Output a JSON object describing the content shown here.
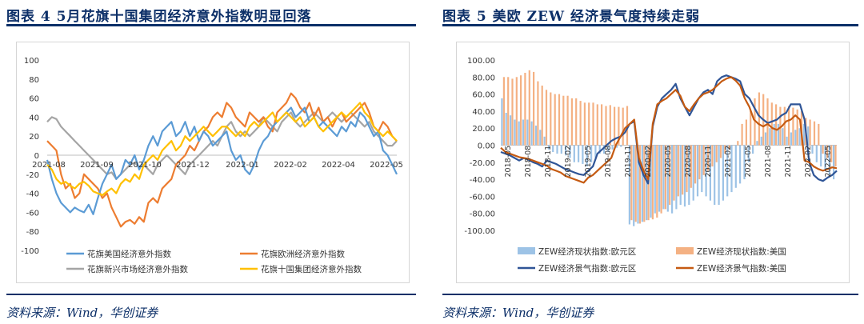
{
  "left": {
    "title": "图表 4   5月花旗十国集团经济意外指数明显回落",
    "source": "资料来源：Wind，华创证券"
  },
  "right": {
    "title": "图表 5   美欧 ZEW 经济景气度持续走弱",
    "source": "资料来源：Wind，华创证券"
  },
  "colors": {
    "title_blue": "#0c2f68",
    "us_blue": "#5b9bd5",
    "eu_orange": "#ed7d31",
    "em_gray": "#a5a5a5",
    "g10_yellow": "#ffc000",
    "zew_eu_bar": "#9dc3e6",
    "zew_us_bar": "#f4b183",
    "zew_eu_line": "#2f5597",
    "zew_us_line": "#c55a11"
  },
  "chart_data": [
    {
      "type": "line",
      "title": "",
      "x_tick_labels": [
        "2021-08",
        "2021-09",
        "2021-10",
        "2021-12",
        "2022-01",
        "2022-02",
        "2022-04",
        "2022-05"
      ],
      "ylim": [
        -100,
        100
      ],
      "y_ticks": [
        100,
        80,
        60,
        40,
        20,
        0,
        -20,
        -40,
        -60,
        -80,
        -100
      ],
      "legend_position": "bottom",
      "series": [
        {
          "name": "花旗美国经济意外指数",
          "color_key": "us_blue",
          "values": [
            -5,
            -25,
            -40,
            -50,
            -55,
            -60,
            -55,
            -58,
            -60,
            -52,
            -62,
            -45,
            -30,
            -20,
            -10,
            -25,
            -20,
            -5,
            -10,
            0,
            -15,
            -5,
            10,
            20,
            10,
            25,
            30,
            35,
            20,
            25,
            35,
            20,
            30,
            15,
            25,
            20,
            10,
            15,
            20,
            25,
            5,
            -5,
            0,
            -15,
            -20,
            -10,
            5,
            15,
            20,
            30,
            35,
            40,
            45,
            50,
            40,
            45,
            50,
            35,
            40,
            30,
            35,
            30,
            25,
            20,
            30,
            25,
            35,
            30,
            45,
            40,
            30,
            20,
            25,
            5,
            0,
            -10,
            -20
          ]
        },
        {
          "name": "花旗欧洲经济意外指数",
          "color_key": "eu_orange",
          "values": [
            15,
            10,
            5,
            -20,
            -35,
            -30,
            -45,
            -40,
            -20,
            -25,
            -30,
            -35,
            -45,
            -40,
            -55,
            -65,
            -75,
            -70,
            -68,
            -72,
            -65,
            -70,
            -50,
            -45,
            -50,
            -35,
            -30,
            -25,
            -10,
            -5,
            0,
            10,
            5,
            15,
            25,
            30,
            40,
            45,
            40,
            55,
            50,
            40,
            35,
            30,
            45,
            40,
            35,
            40,
            30,
            25,
            45,
            50,
            55,
            65,
            60,
            50,
            45,
            55,
            40,
            50,
            35,
            40,
            30,
            40,
            45,
            35,
            40,
            45,
            50,
            55,
            45,
            30,
            25,
            35,
            30,
            20,
            15
          ]
        },
        {
          "name": "花旗新兴市场经济意外指数",
          "color_key": "em_gray",
          "values": [
            35,
            40,
            38,
            30,
            25,
            20,
            15,
            10,
            5,
            0,
            -5,
            -10,
            -15,
            -20,
            -18,
            -25,
            -20,
            -15,
            -10,
            -8,
            -12,
            -10,
            -15,
            -20,
            -10,
            -5,
            0,
            -5,
            -10,
            -15,
            -20,
            -10,
            -5,
            0,
            5,
            10,
            15,
            10,
            20,
            30,
            35,
            25,
            20,
            25,
            20,
            25,
            30,
            40,
            35,
            30,
            25,
            35,
            40,
            45,
            35,
            30,
            35,
            40,
            45,
            40,
            35,
            40,
            45,
            40,
            35,
            40,
            45,
            40,
            35,
            30,
            35,
            25,
            20,
            15,
            10,
            10,
            15
          ]
        },
        {
          "name": "花旗十国集团经济意外指数",
          "color_key": "g10_yellow",
          "values": [
            -10,
            -15,
            -25,
            -30,
            -28,
            -32,
            -35,
            -30,
            -28,
            -32,
            -38,
            -40,
            -42,
            -38,
            -35,
            -40,
            -30,
            -25,
            -28,
            -20,
            -25,
            -10,
            -5,
            0,
            -5,
            5,
            10,
            15,
            5,
            10,
            20,
            15,
            20,
            25,
            30,
            25,
            20,
            25,
            30,
            30,
            25,
            20,
            25,
            20,
            30,
            35,
            30,
            35,
            40,
            45,
            35,
            40,
            45,
            40,
            35,
            40,
            30,
            35,
            40,
            30,
            25,
            30,
            35,
            40,
            45,
            40,
            45,
            50,
            55,
            45,
            40,
            30,
            25,
            20,
            25,
            20,
            15
          ]
        }
      ]
    },
    {
      "type": "bar",
      "title": "",
      "x_tick_labels": [
        "2018-05",
        "2018-08",
        "2018-11",
        "2019-02",
        "2019-05",
        "2019-08",
        "2019-11",
        "2020-02",
        "2020-05",
        "2020-08",
        "2020-11",
        "2021-02",
        "2021-05",
        "2021-08",
        "2021-11",
        "2022-02",
        "2022-05"
      ],
      "ylim": [
        -100,
        100
      ],
      "y_ticks": [
        "100.00",
        "80.00",
        "60.00",
        "40.00",
        "20.00",
        "0.00",
        "-20.00",
        "-40.00",
        "-60.00",
        "-80.00",
        "-100.00"
      ],
      "legend_position": "bottom",
      "series": [
        {
          "name": "ZEW经济现状指数:欧元区",
          "type": "bar",
          "color_key": "zew_eu_bar",
          "values": [
            55,
            38,
            35,
            30,
            28,
            30,
            30,
            28,
            23,
            18,
            10,
            -5,
            -8,
            -10,
            -10,
            -12,
            -15,
            -20,
            -20,
            -22,
            -25,
            -20,
            -15,
            -10,
            -10,
            -8,
            -5,
            -3,
            -2,
            0,
            -93,
            -95,
            -92,
            -90,
            -88,
            -85,
            -80,
            -78,
            -75,
            -78,
            -80,
            -75,
            -70,
            -72,
            -70,
            -65,
            -60,
            -55,
            -60,
            -65,
            -70,
            -70,
            -65,
            -60,
            -55,
            -50,
            -45,
            -40,
            -20,
            -10,
            5,
            10,
            15,
            20,
            25,
            25,
            20,
            10,
            15,
            18,
            20,
            25,
            22,
            -10,
            -20,
            -25,
            -30,
            -35,
            -40
          ]
        },
        {
          "name": "ZEW经济现状指数:美国",
          "type": "bar",
          "color_key": "zew_us_bar",
          "values": [
            80,
            80,
            78,
            80,
            82,
            85,
            88,
            86,
            75,
            70,
            65,
            62,
            60,
            60,
            58,
            58,
            55,
            55,
            52,
            50,
            50,
            50,
            48,
            48,
            46,
            47,
            45,
            45,
            44,
            46,
            -88,
            -90,
            -92,
            -90,
            -88,
            -87,
            -85,
            -80,
            -75,
            -70,
            -65,
            -60,
            -58,
            -55,
            -50,
            -45,
            -40,
            -35,
            -30,
            -25,
            -20,
            -15,
            -10,
            -5,
            0,
            5,
            25,
            30,
            40,
            55,
            62,
            60,
            55,
            50,
            48,
            45,
            45,
            46,
            44,
            42,
            40,
            32,
            30,
            28,
            25,
            -10,
            -15,
            -20,
            -25
          ]
        },
        {
          "name": "ZEW经济景气指数:欧元区",
          "type": "line",
          "color_key": "zew_eu_line",
          "values": [
            -8,
            -10,
            -12,
            -15,
            -18,
            -15,
            -17,
            -20,
            -22,
            -25,
            -18,
            -20,
            -22,
            -25,
            -28,
            -30,
            -32,
            -34,
            -35,
            -30,
            -25,
            -10,
            -5,
            0,
            5,
            8,
            10,
            15,
            25,
            28,
            -20,
            -35,
            -45,
            22,
            45,
            55,
            60,
            65,
            72,
            55,
            45,
            35,
            45,
            55,
            62,
            65,
            60,
            75,
            80,
            82,
            80,
            78,
            75,
            60,
            55,
            45,
            35,
            30,
            26,
            28,
            30,
            35,
            38,
            48,
            48,
            48,
            30,
            -20,
            -35,
            -40,
            -42,
            -38,
            -35,
            -30
          ]
        },
        {
          "name": "ZEW经济景气指数:美国",
          "type": "line",
          "color_key": "zew_us_line",
          "values": [
            -3,
            -8,
            -10,
            -12,
            -14,
            -15,
            -16,
            -18,
            -20,
            -22,
            -24,
            -28,
            -30,
            -32,
            -36,
            -38,
            -40,
            -42,
            -44,
            -38,
            -35,
            -30,
            -25,
            -20,
            -15,
            0,
            10,
            20,
            25,
            30,
            -15,
            -30,
            -40,
            25,
            48,
            52,
            55,
            60,
            65,
            58,
            45,
            40,
            48,
            55,
            60,
            62,
            65,
            70,
            75,
            78,
            80,
            76,
            70,
            55,
            45,
            30,
            25,
            22,
            25,
            20,
            18,
            22,
            28,
            30,
            35,
            30,
            -18,
            -20,
            -25,
            -28,
            -30,
            -28,
            -26,
            -27
          ]
        }
      ]
    }
  ]
}
